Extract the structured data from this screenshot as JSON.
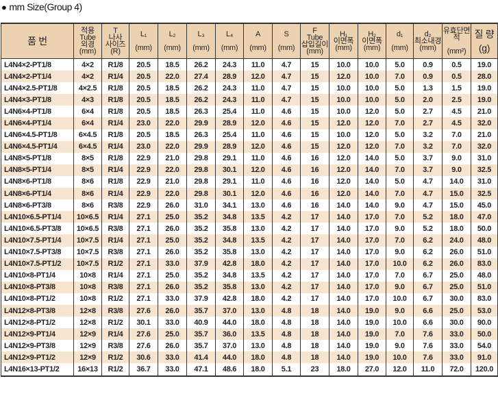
{
  "title": "mm Size(Group 4)",
  "colors": {
    "header_bg": "#ecd2b0",
    "stripe_bg": "#f6e4cf"
  },
  "headers": [
    [
      "품 번"
    ],
    [
      "적용",
      "Tube",
      "외경",
      "(mm)"
    ],
    [
      "T",
      "나사",
      "사이즈",
      "(R)"
    ],
    [
      "L₁",
      "(mm)"
    ],
    [
      "L₂",
      "(mm)"
    ],
    [
      "L₃",
      "(mm)"
    ],
    [
      "L₄",
      "(mm)"
    ],
    [
      "A",
      "(mm)"
    ],
    [
      "S",
      "(mm)"
    ],
    [
      "F",
      "Tube",
      "삽입길이",
      "(mm)"
    ],
    [
      "H₁",
      "이면폭",
      "(mm)"
    ],
    [
      "H₂",
      "이면폭",
      "(mm)"
    ],
    [
      "d₁",
      "(mm)"
    ],
    [
      "d₂",
      "최소내경",
      "(mm)"
    ],
    [
      "유효단면적",
      "(mm²)"
    ],
    [
      "질 량",
      "(g)"
    ]
  ],
  "rows": [
    [
      "L4N4×2-PT1/8",
      "4×2",
      "R1/8",
      "20.5",
      "18.5",
      "26.2",
      "24.3",
      "11.0",
      "4.7",
      "15",
      "10.0",
      "10.0",
      "5.0",
      "0.9",
      "0.5",
      "19.0"
    ],
    [
      "L4N4×2-PT1/4",
      "4×2",
      "R1/4",
      "20.5",
      "22.0",
      "27.4",
      "28.9",
      "12.0",
      "4.7",
      "15",
      "12.0",
      "10.0",
      "7.0",
      "0.9",
      "0.5",
      "28.0"
    ],
    [
      "L4N4×2.5-PT1/8",
      "4×2.5",
      "R1/8",
      "20.5",
      "18.5",
      "26.2",
      "24.3",
      "11.0",
      "4.7",
      "15",
      "10.0",
      "10.0",
      "5.0",
      "1.3",
      "1.5",
      "19.0"
    ],
    [
      "L4N4×3-PT1/8",
      "4×3",
      "R1/8",
      "20.5",
      "18.5",
      "26.2",
      "24.3",
      "11.0",
      "4.7",
      "15",
      "10.0",
      "10.0",
      "5.0",
      "2.0",
      "2.5",
      "19.0"
    ],
    [
      "L4N6×4-PT1/8",
      "6×4",
      "R1/8",
      "20.5",
      "18.5",
      "26.3",
      "25.4",
      "11.0",
      "4.6",
      "15",
      "10.0",
      "12.0",
      "5.0",
      "2.7",
      "4.5",
      "21.0"
    ],
    [
      "L4N6×4-PT1/4",
      "6×4",
      "R1/4",
      "23.0",
      "22.0",
      "29.9",
      "28.9",
      "12.0",
      "4.6",
      "15",
      "12.0",
      "12.0",
      "7.0",
      "2.7",
      "4.5",
      "32.0"
    ],
    [
      "L4N6×4.5-PT1/8",
      "6×4.5",
      "R1/8",
      "20.5",
      "18.5",
      "26.3",
      "25.4",
      "11.0",
      "4.6",
      "15",
      "10.0",
      "12.0",
      "5.0",
      "3.2",
      "7.0",
      "21.0"
    ],
    [
      "L4N6×4.5-PT1/4",
      "6×4.5",
      "R1/4",
      "23.0",
      "22.0",
      "29.9",
      "28.9",
      "12.0",
      "4.6",
      "15",
      "12.0",
      "12.0",
      "7.0",
      "3.2",
      "7.0",
      "32.0"
    ],
    [
      "L4N8×5-PT1/8",
      "8×5",
      "R1/8",
      "22.9",
      "21.0",
      "29.8",
      "29.1",
      "11.0",
      "4.6",
      "16",
      "12.0",
      "14.0",
      "5.0",
      "3.7",
      "9.0",
      "31.0"
    ],
    [
      "L4N8×5-PT1/4",
      "8×5",
      "R1/4",
      "22.9",
      "22.0",
      "29.8",
      "30.1",
      "12.0",
      "4.6",
      "16",
      "12.0",
      "14.0",
      "7.0",
      "3.7",
      "9.0",
      "32.5"
    ],
    [
      "L4N8×6-PT1/8",
      "8×6",
      "R1/8",
      "22.9",
      "21.0",
      "29.8",
      "29.1",
      "11.0",
      "4.6",
      "16",
      "12.0",
      "14.0",
      "5.0",
      "4.7",
      "14.0",
      "31.0"
    ],
    [
      "L4N8×6-PT1/4",
      "8×6",
      "R1/4",
      "22.9",
      "22.0",
      "29.8",
      "30.1",
      "12.0",
      "4.6",
      "16",
      "12.0",
      "14.0",
      "7.0",
      "4.7",
      "15.0",
      "32.5"
    ],
    [
      "L4N8×6-PT3/8",
      "8×6",
      "R3/8",
      "22.9",
      "26.0",
      "31.0",
      "34.1",
      "13.0",
      "4.6",
      "16",
      "14.0",
      "14.0",
      "9.0",
      "4.7",
      "15.0",
      "45.0"
    ],
    [
      "L4N10×6.5-PT1/4",
      "10×6.5",
      "R1/4",
      "27.1",
      "25.0",
      "35.2",
      "34.8",
      "13.5",
      "4.2",
      "17",
      "14.0",
      "17.0",
      "7.0",
      "5.2",
      "18.0",
      "47.0"
    ],
    [
      "L4N10×6.5-PT3/8",
      "10×6.5",
      "R3/8",
      "27.1",
      "26.0",
      "35.2",
      "35.8",
      "13.0",
      "4.2",
      "17",
      "14.0",
      "17.0",
      "9.0",
      "5.2",
      "18.0",
      "50.0"
    ],
    [
      "L4N10×7.5-PT1/4",
      "10×7.5",
      "R1/4",
      "27.1",
      "25.0",
      "35.2",
      "34.8",
      "13.5",
      "4.2",
      "17",
      "14.0",
      "17.0",
      "7.0",
      "6.2",
      "24.0",
      "48.0"
    ],
    [
      "L4N10×7.5-PT3/8",
      "10×7.5",
      "R3/8",
      "27.1",
      "26.0",
      "35.2",
      "35.8",
      "13.0",
      "4.2",
      "17",
      "14.0",
      "17.0",
      "9.0",
      "6.2",
      "26.0",
      "51.0"
    ],
    [
      "L4N10×7.5-PT1/2",
      "10×7.5",
      "R1/2",
      "27.1",
      "33.0",
      "37.9",
      "42.8",
      "18.0",
      "4.2",
      "17",
      "14.0",
      "17.0",
      "10.0",
      "6.2",
      "26.0",
      "83.0"
    ],
    [
      "L4N10×8-PT1/4",
      "10×8",
      "R1/4",
      "27.1",
      "25.0",
      "35.2",
      "34.8",
      "13.5",
      "4.2",
      "17",
      "14.0",
      "17.0",
      "7.0",
      "6.7",
      "25.0",
      "48.0"
    ],
    [
      "L4N10×8-PT3/8",
      "10×8",
      "R3/8",
      "27.1",
      "26.0",
      "35.2",
      "35.8",
      "13.0",
      "4.2",
      "17",
      "14.0",
      "17.0",
      "9.0",
      "6.7",
      "25.0",
      "51.0"
    ],
    [
      "L4N10×8-PT1/2",
      "10×8",
      "R1/2",
      "27.1",
      "33.0",
      "37.9",
      "42.8",
      "18.0",
      "4.2",
      "17",
      "14.0",
      "17.0",
      "10.0",
      "6.7",
      "30.0",
      "83.0"
    ],
    [
      "L4N12×8-PT3/8",
      "12×8",
      "R3/8",
      "27.6",
      "26.0",
      "35.7",
      "37.0",
      "13.0",
      "4.8",
      "18",
      "14.0",
      "19.0",
      "9.0",
      "6.6",
      "25.0",
      "53.0"
    ],
    [
      "L4N12×8-PT1/2",
      "12×8",
      "R1/2",
      "30.1",
      "33.0",
      "40.9",
      "44.0",
      "18.0",
      "4.8",
      "18",
      "14.0",
      "19.0",
      "10.0",
      "6.6",
      "30.0",
      "90.0"
    ],
    [
      "L4N12×9-PT1/4",
      "12×9",
      "R1/4",
      "27.6",
      "25.0",
      "35.7",
      "36.0",
      "13.5",
      "4.8",
      "18",
      "14.0",
      "19.0",
      "7.0",
      "7.6",
      "33.0",
      "50.0"
    ],
    [
      "L4N12×9-PT3/8",
      "12×9",
      "R3/8",
      "27.6",
      "26.0",
      "35.7",
      "37.0",
      "13.0",
      "4.8",
      "18",
      "14.0",
      "19.0",
      "9.0",
      "7.6",
      "33.0",
      "54.0"
    ],
    [
      "L4N12×9-PT1/2",
      "12×9",
      "R1/2",
      "30.6",
      "33.0",
      "41.4",
      "44.0",
      "18.0",
      "4.8",
      "18",
      "14.0",
      "19.0",
      "10.0",
      "7.6",
      "33.0",
      "91.0"
    ],
    [
      "L4N16×13-PT1/2",
      "16×13",
      "R1/2",
      "36.7",
      "33.0",
      "47.1",
      "48.6",
      "18.0",
      "5.1",
      "23",
      "18.0",
      "27.0",
      "12.0",
      "11.0",
      "72.0",
      "120.0"
    ]
  ]
}
